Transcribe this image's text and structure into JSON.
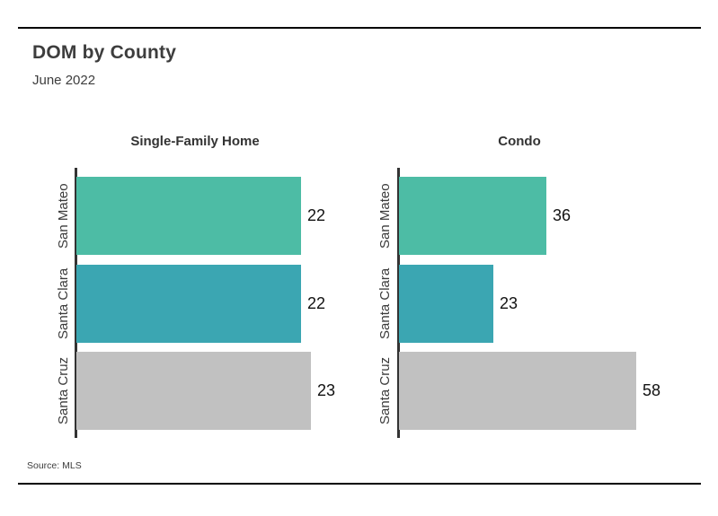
{
  "page": {
    "title": "DOM by County",
    "subtitle": "June 2022",
    "source": "Source: MLS"
  },
  "colors": {
    "san_mateo_bar": "#4dbca5",
    "santa_clara_bar": "#3ba6b2",
    "santa_cruz_bar": "#c1c1c1",
    "axis": "#333333",
    "rule": "#000000",
    "text": "#3d3d3d"
  },
  "chart_data": [
    {
      "type": "bar",
      "orientation": "horizontal",
      "title": "Single-Family Home",
      "categories": [
        "San Mateo",
        "Santa Clara",
        "Santa Cruz"
      ],
      "values": [
        22,
        22,
        23
      ],
      "data_labels": [
        "22",
        "22",
        "23"
      ],
      "bar_colors": [
        "#4dbca5",
        "#3ba6b2",
        "#c1c1c1"
      ],
      "xlim": [
        0,
        26
      ],
      "xlabel": "",
      "ylabel": "",
      "grid": false,
      "legend": false
    },
    {
      "type": "bar",
      "orientation": "horizontal",
      "title": "Condo",
      "categories": [
        "San Mateo",
        "Santa Clara",
        "Santa Cruz"
      ],
      "values": [
        36,
        23,
        58
      ],
      "data_labels": [
        "36",
        "23",
        "58"
      ],
      "bar_colors": [
        "#4dbca5",
        "#3ba6b2",
        "#c1c1c1"
      ],
      "xlim": [
        0,
        74
      ],
      "xlabel": "",
      "ylabel": "",
      "grid": false,
      "legend": false
    }
  ]
}
